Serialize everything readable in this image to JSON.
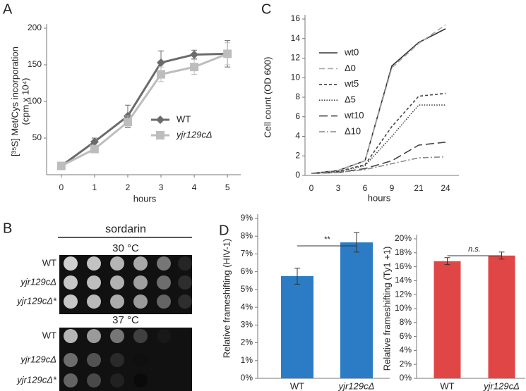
{
  "panel_labels": [
    "A",
    "B",
    "C",
    "D"
  ],
  "panel_b": {
    "title": "sordarin",
    "plates": [
      {
        "label": "30 °C",
        "strains": [
          "WT",
          "yjr129cΔ",
          "yjr129cΔ*"
        ]
      },
      {
        "label": "37 °C",
        "strains": [
          "WT",
          "yjr129cΔ",
          "yjr129cΔ*"
        ]
      }
    ]
  },
  "chart_data": [
    {
      "type": "line",
      "ylabel": [
        "[³⁵S] Met/Cys incorporation",
        "(cpm x 10⁴)"
      ],
      "xlabel": "hours",
      "x": [
        0,
        1,
        2,
        3,
        4,
        5
      ],
      "xlim": [
        -0.4,
        5.4
      ],
      "xticks": [
        0,
        1,
        2,
        3,
        4,
        5
      ],
      "ylim": [
        0,
        200
      ],
      "yticks": [
        50,
        100,
        150,
        200
      ],
      "series": [
        {
          "name": "WT",
          "color": "#6b6b6b",
          "marker": "diamond",
          "values": [
            12,
            45,
            80,
            153,
            164,
            165
          ],
          "errors": [
            2,
            5,
            15,
            16,
            6,
            18
          ]
        },
        {
          "name": "yjr129cΔ",
          "color": "#bdbdbd",
          "marker": "square",
          "values": [
            12,
            35,
            72,
            137,
            147,
            165
          ],
          "errors": [
            2,
            3,
            8,
            10,
            10,
            15
          ]
        }
      ]
    },
    {
      "type": "line",
      "ylabel": [
        "Cell count (OD 600)"
      ],
      "xlabel": "hours",
      "categories": [
        "0",
        "3",
        "6",
        "9",
        "21",
        "24"
      ],
      "ylim": [
        0,
        16
      ],
      "yticks": [
        0,
        2,
        4,
        6,
        8,
        10,
        12,
        14,
        16
      ],
      "series": [
        {
          "name": "wt0",
          "color": "#333333",
          "dash": "none",
          "values": [
            0.2,
            0.5,
            1.5,
            11.2,
            13.6,
            15.0
          ]
        },
        {
          "name": "Δ0",
          "color": "#a8a8a8",
          "dash": "8 4",
          "values": [
            0.2,
            0.5,
            1.5,
            11.0,
            13.5,
            15.4
          ]
        },
        {
          "name": "wt5",
          "color": "#444444",
          "dash": "4 3",
          "values": [
            0.2,
            0.4,
            1.1,
            5.0,
            8.1,
            8.4
          ]
        },
        {
          "name": "Δ5",
          "color": "#444444",
          "dash": "1.5 2",
          "values": [
            0.2,
            0.4,
            1.0,
            4.0,
            7.2,
            7.2
          ]
        },
        {
          "name": "wt10",
          "color": "#444444",
          "dash": "12 5",
          "values": [
            0.2,
            0.3,
            0.7,
            1.5,
            3.1,
            3.4
          ]
        },
        {
          "name": "Δ10",
          "color": "#888888",
          "dash": "8 3 2 3",
          "values": [
            0.2,
            0.3,
            0.6,
            1.2,
            1.8,
            1.9
          ]
        }
      ]
    },
    {
      "type": "bar",
      "ylabel": [
        "Relative frameshifting (HIV-1)"
      ],
      "color": "#2b7cc4",
      "categories": [
        "WT",
        "yjr129cΔ"
      ],
      "values": [
        5.75,
        7.65
      ],
      "errors": [
        0.45,
        0.55
      ],
      "ylim": [
        0,
        9
      ],
      "yticks": [
        {
          "value": 0,
          "label": "0%"
        },
        {
          "value": 1,
          "label": "1%"
        },
        {
          "value": 2,
          "label": "2%"
        },
        {
          "value": 3,
          "label": "3%"
        },
        {
          "value": 4,
          "label": "4%"
        },
        {
          "value": 5,
          "label": "5%"
        },
        {
          "value": 6,
          "label": "6%"
        },
        {
          "value": 7,
          "label": "7%"
        },
        {
          "value": 8,
          "label": "8%"
        },
        {
          "value": 9,
          "label": "9%"
        }
      ],
      "significance": "**"
    },
    {
      "type": "bar",
      "ylabel": [
        "Relative frameshifting (Ty1 +1)"
      ],
      "color": "#e04646",
      "categories": [
        "WT",
        "yjr129cΔ"
      ],
      "values": [
        16.8,
        17.6
      ],
      "errors": [
        0.5,
        0.5
      ],
      "ylim": [
        0,
        20
      ],
      "yticks": [
        {
          "value": 0,
          "label": "0%"
        },
        {
          "value": 2,
          "label": "2%"
        },
        {
          "value": 4,
          "label": "4%"
        },
        {
          "value": 6,
          "label": "6%"
        },
        {
          "value": 8,
          "label": "8%"
        },
        {
          "value": 10,
          "label": "10%"
        },
        {
          "value": 12,
          "label": "12%"
        },
        {
          "value": 14,
          "label": "14%"
        },
        {
          "value": 16,
          "label": "16%"
        },
        {
          "value": 18,
          "label": "18%"
        },
        {
          "value": 20,
          "label": "20%"
        }
      ],
      "significance": "n.s."
    }
  ]
}
